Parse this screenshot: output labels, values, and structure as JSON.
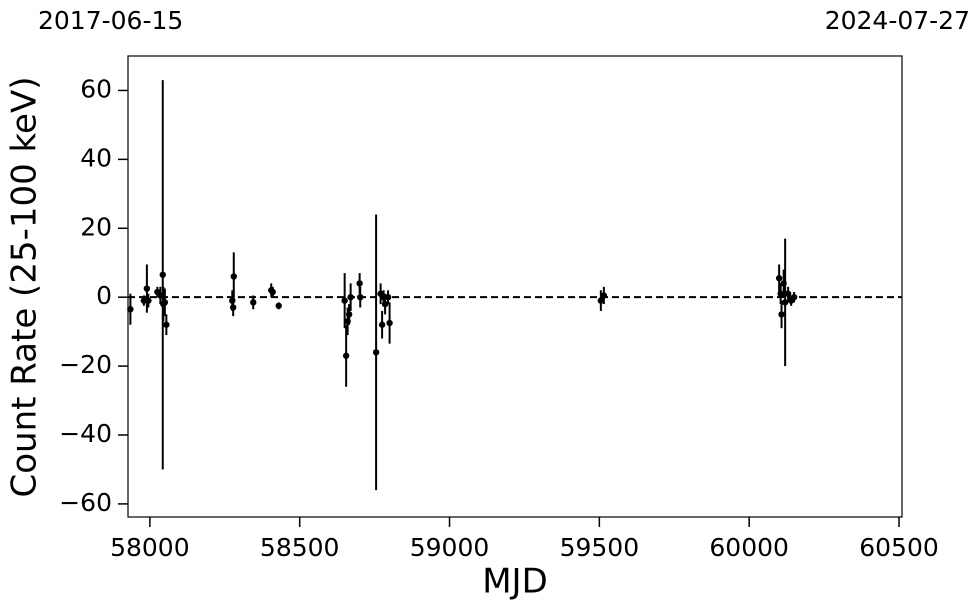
{
  "chart_data": {
    "type": "errorbar",
    "top_left_label": "2017-06-15",
    "top_right_label": "2024-07-27",
    "xlabel": "MJD",
    "ylabel": "Count Rate (25-100 keV)",
    "xlim": [
      57927,
      60510
    ],
    "ylim": [
      -63.8,
      70
    ],
    "xticks": [
      58000,
      58500,
      59000,
      59500,
      60000,
      60500
    ],
    "yticks": [
      {
        "value": -60,
        "label": "−60"
      },
      {
        "value": -40,
        "label": "−40"
      },
      {
        "value": -20,
        "label": "−20"
      },
      0,
      20,
      40,
      60
    ],
    "hline": 0,
    "series": [
      {
        "color": "#000000",
        "x": [
          57935,
          57980,
          57990,
          57995,
          58025,
          58035,
          58043,
          58045,
          58050,
          58055,
          58275,
          58278,
          58280,
          58345,
          58405,
          58410,
          58430,
          58650,
          58655,
          58660,
          58665,
          58670,
          58700,
          58702,
          58755,
          58770,
          58775,
          58780,
          58785,
          58795,
          58800,
          59505,
          59515,
          60100,
          60105,
          60108,
          60115,
          60120,
          60130,
          60140,
          60150
        ],
        "values": [
          -3.5,
          -1,
          2.5,
          -1,
          1.5,
          0.5,
          6.5,
          -2,
          -1.5,
          -8,
          -1,
          -3,
          6,
          -1.5,
          2,
          1.5,
          -2.5,
          -1,
          -17,
          -7,
          -5,
          0,
          4,
          0,
          -16,
          1,
          -8,
          0,
          -2,
          0,
          -7.5,
          -1,
          0.5,
          5.5,
          1,
          -5,
          4,
          -1.5,
          1,
          -1,
          0
        ],
        "errors": [
          4.5,
          1.5,
          7,
          2,
          1.5,
          2.5,
          56.5,
          5,
          4,
          3,
          3,
          2.5,
          7,
          2,
          2,
          1.5,
          1,
          8,
          9,
          4,
          3,
          4,
          3,
          3,
          40,
          3,
          4,
          2,
          3,
          2,
          6,
          3,
          2.5,
          4,
          3,
          4,
          4,
          18.5,
          2,
          1.5,
          1.5
        ]
      }
    ]
  }
}
